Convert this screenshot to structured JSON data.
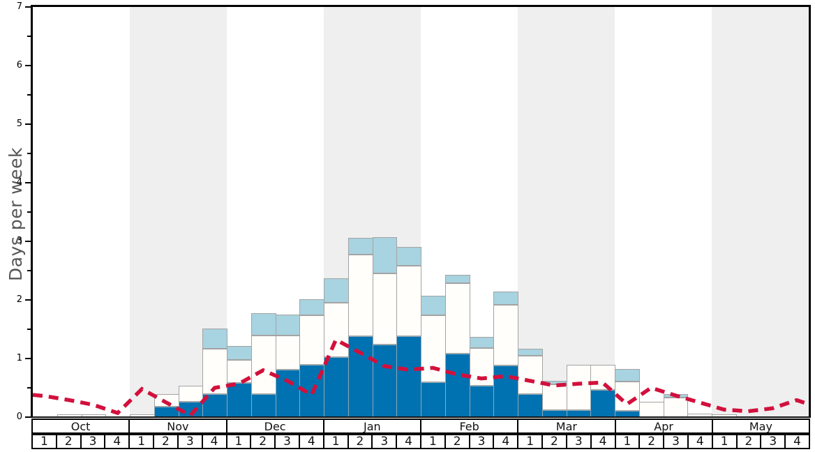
{
  "y_axis": {
    "title": "Days per week",
    "tick_labels": [
      "0",
      "1",
      "2",
      "3",
      "4",
      "5",
      "6",
      "7"
    ],
    "max": 7
  },
  "x_axis": {
    "months": [
      {
        "label": "Oct",
        "weeks": [
          "1",
          "2",
          "3",
          "4"
        ]
      },
      {
        "label": "Nov",
        "weeks": [
          "1",
          "2",
          "3",
          "4"
        ]
      },
      {
        "label": "Dec",
        "weeks": [
          "1",
          "2",
          "3",
          "4"
        ]
      },
      {
        "label": "Jan",
        "weeks": [
          "1",
          "2",
          "3",
          "4"
        ]
      },
      {
        "label": "Feb",
        "weeks": [
          "1",
          "2",
          "3",
          "4"
        ]
      },
      {
        "label": "Mar",
        "weeks": [
          "1",
          "2",
          "3",
          "4"
        ]
      },
      {
        "label": "Apr",
        "weeks": [
          "1",
          "2",
          "3",
          "4"
        ]
      },
      {
        "label": "May",
        "weeks": [
          "1",
          "2",
          "3",
          "4"
        ]
      }
    ],
    "shaded_months": [
      "Nov",
      "Jan",
      "Mar",
      "May"
    ],
    "band_color": "#efefef"
  },
  "chart_data": [
    {
      "type": "bar",
      "stacked": true,
      "title": "",
      "xlabel": "",
      "ylabel": "Days per week",
      "ylim": [
        0,
        7
      ],
      "grid": false,
      "categories": [
        "Oct w1",
        "Oct w2",
        "Oct w3",
        "Oct w4",
        "Nov w1",
        "Nov w2",
        "Nov w3",
        "Nov w4",
        "Dec w1",
        "Dec w2",
        "Dec w3",
        "Dec w4",
        "Jan w1",
        "Jan w2",
        "Jan w3",
        "Jan w4",
        "Feb w1",
        "Feb w2",
        "Feb w3",
        "Feb w4",
        "Mar w1",
        "Mar w2",
        "Mar w3",
        "Mar w4",
        "Apr w1",
        "Apr w2",
        "Apr w3",
        "Apr w4",
        "May w1",
        "May w2",
        "May w3",
        "May w4"
      ],
      "series": [
        {
          "name": "dark-blue-segment",
          "color": "#0072b1",
          "values": [
            0,
            0,
            0,
            0,
            0,
            0.19,
            0.27,
            0.41,
            0.59,
            0.41,
            0.82,
            0.9,
            1.04,
            1.39,
            1.25,
            1.39,
            0.61,
            1.1,
            0.55,
            0.89,
            0.4,
            0.13,
            0.13,
            0.48,
            0.12,
            0,
            0,
            0,
            0,
            0,
            0,
            0
          ]
        },
        {
          "name": "white-segment",
          "color": "#fffefa",
          "values": [
            0,
            0.06,
            0.06,
            0,
            0.06,
            0.22,
            0.28,
            0.77,
            0.4,
            0.99,
            0.58,
            0.85,
            0.92,
            1.4,
            1.21,
            1.2,
            1.14,
            1.2,
            0.64,
            1.04,
            0.66,
            0.44,
            0.78,
            0.42,
            0.5,
            0.27,
            0.34,
            0.07,
            0.06,
            0,
            0,
            0
          ]
        },
        {
          "name": "light-blue-segment",
          "color": "#a8d3e0",
          "values": [
            0,
            0,
            0,
            0,
            0,
            0,
            0,
            0.35,
            0.24,
            0.39,
            0.36,
            0.28,
            0.42,
            0.28,
            0.62,
            0.33,
            0.33,
            0.14,
            0.19,
            0.23,
            0.12,
            0.06,
            0,
            0,
            0.21,
            0,
            0.06,
            0,
            0,
            0,
            0,
            0
          ]
        }
      ]
    },
    {
      "type": "line",
      "name": "red-dashed-line",
      "color": "#d2103c",
      "dashed": true,
      "x_anchors": "plot-left-edge, 32 week centers, plot-right-edge",
      "values": [
        0.38,
        0.36,
        0.29,
        0.21,
        0.07,
        0.48,
        0.25,
        0.03,
        0.5,
        0.57,
        0.8,
        0.62,
        0.38,
        1.32,
        1.1,
        0.87,
        0.81,
        0.84,
        0.73,
        0.66,
        0.7,
        0.62,
        0.54,
        0.57,
        0.59,
        0.22,
        0.5,
        0.37,
        0.25,
        0.13,
        0.1,
        0.15,
        0.29,
        0.22
      ],
      "ylim": [
        0,
        7
      ]
    }
  ]
}
